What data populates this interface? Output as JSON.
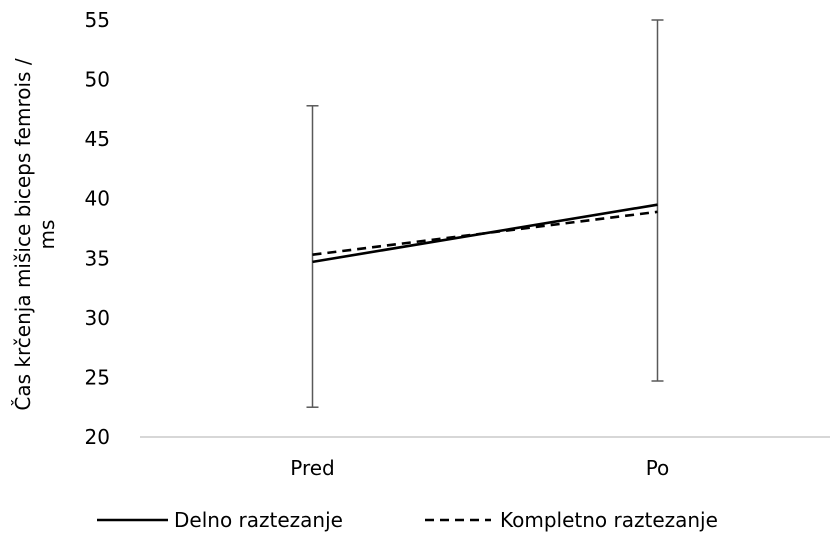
{
  "chart_data": {
    "type": "line",
    "categories": [
      "Pred",
      "Po"
    ],
    "ylabel": "Čas krčenja mišice biceps femrois / ms",
    "ylim": [
      20,
      55
    ],
    "yticks": [
      20,
      25,
      30,
      35,
      40,
      45,
      50,
      55
    ],
    "grid": false,
    "legend_position": "bottom",
    "error_bars": [
      {
        "category": "Pred",
        "low": 22.5,
        "high": 47.8
      },
      {
        "category": "Po",
        "low": 24.7,
        "high": 55.0
      }
    ],
    "series": [
      {
        "name": "Delno raztezanje",
        "values": [
          34.7,
          39.5
        ],
        "style": "solid",
        "color": "#000000"
      },
      {
        "name": "Kompletno raztezanje",
        "values": [
          35.3,
          38.9
        ],
        "style": "dashed",
        "color": "#000000"
      }
    ]
  },
  "colors": {
    "axis": "#bfbfbf",
    "error_bar": "#595959"
  }
}
